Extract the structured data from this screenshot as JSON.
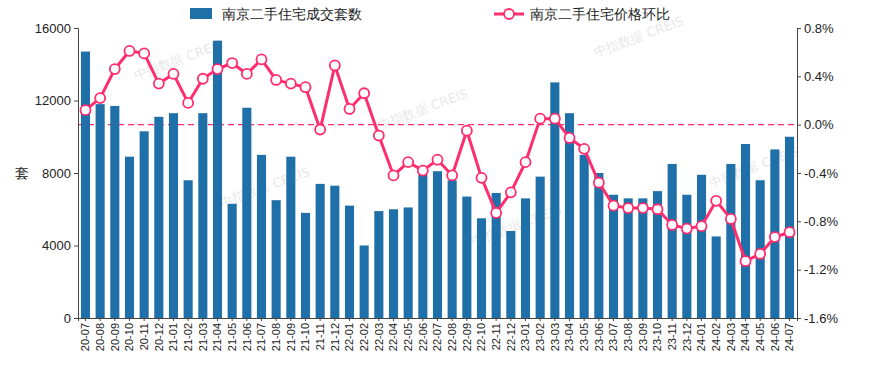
{
  "chart_data": {
    "type": "bar",
    "y_label": "套",
    "annotations": [
      "中指数据 CREIS"
    ],
    "categories": [
      "20-07",
      "20-08",
      "20-09",
      "20-10",
      "20-11",
      "20-12",
      "21-01",
      "21-02",
      "21-03",
      "21-04",
      "21-05",
      "21-06",
      "21-07",
      "21-08",
      "21-09",
      "21-10",
      "21-11",
      "21-12",
      "22-01",
      "22-02",
      "22-03",
      "22-04",
      "22-05",
      "22-06",
      "22-07",
      "22-08",
      "22-09",
      "22-10",
      "22-11",
      "22-12",
      "23-01",
      "23-02",
      "23-03",
      "23-04",
      "23-05",
      "23-06",
      "23-07",
      "23-08",
      "23-09",
      "23-10",
      "23-11",
      "23-12",
      "24-01",
      "24-02",
      "24-03",
      "24-04",
      "24-05",
      "24-06",
      "24-07"
    ],
    "series": [
      {
        "name": "南京二手住宅成交套数",
        "type": "bar",
        "color": "#1f6fa8",
        "values": [
          14700,
          11800,
          11700,
          8900,
          10300,
          11100,
          11300,
          7600,
          11300,
          15300,
          6300,
          11600,
          9000,
          6500,
          8900,
          5800,
          7400,
          7300,
          6200,
          4000,
          5900,
          6000,
          6100,
          7900,
          8100,
          7600,
          6700,
          5500,
          6900,
          4800,
          6600,
          7800,
          13000,
          11300,
          9000,
          8000,
          6800,
          6600,
          6600,
          7000,
          8500,
          6800,
          7900,
          4500,
          8500,
          9600,
          7600,
          9300,
          10000
        ]
      },
      {
        "name": "南京二手住宅价格环比",
        "type": "line",
        "axis": "y2",
        "color": "#ff2d6e",
        "marker": "circle",
        "values": [
          0.12,
          0.22,
          0.46,
          0.61,
          0.59,
          0.34,
          0.42,
          0.18,
          0.38,
          0.46,
          0.51,
          0.42,
          0.54,
          0.37,
          0.34,
          0.31,
          -0.04,
          0.49,
          0.13,
          0.26,
          -0.09,
          -0.42,
          -0.31,
          -0.38,
          -0.29,
          -0.42,
          -0.05,
          -0.44,
          -0.73,
          -0.56,
          -0.31,
          0.05,
          0.05,
          -0.11,
          -0.2,
          -0.48,
          -0.67,
          -0.69,
          -0.69,
          -0.7,
          -0.83,
          -0.86,
          -0.84,
          -0.63,
          -0.78,
          -1.13,
          -1.07,
          -0.93,
          -0.89
        ]
      }
    ],
    "ylim": [
      0,
      16000
    ],
    "yticks": [
      0,
      4000,
      8000,
      12000,
      16000
    ],
    "y2lim": [
      -1.6,
      0.8
    ],
    "y2ticks": [
      {
        "value": -1.6,
        "label": "-1.6%"
      },
      {
        "value": -1.2,
        "label": "-1.2%"
      },
      {
        "value": -0.8,
        "label": "-0.8%"
      },
      {
        "value": -0.4,
        "label": "-0.4%"
      },
      {
        "value": 0.0,
        "label": "0.0%"
      },
      {
        "value": 0.4,
        "label": "0.4%"
      },
      {
        "value": 0.8,
        "label": "0.8%"
      }
    ],
    "y2_reference_line": 0.0,
    "legend": "top",
    "grid": false
  }
}
